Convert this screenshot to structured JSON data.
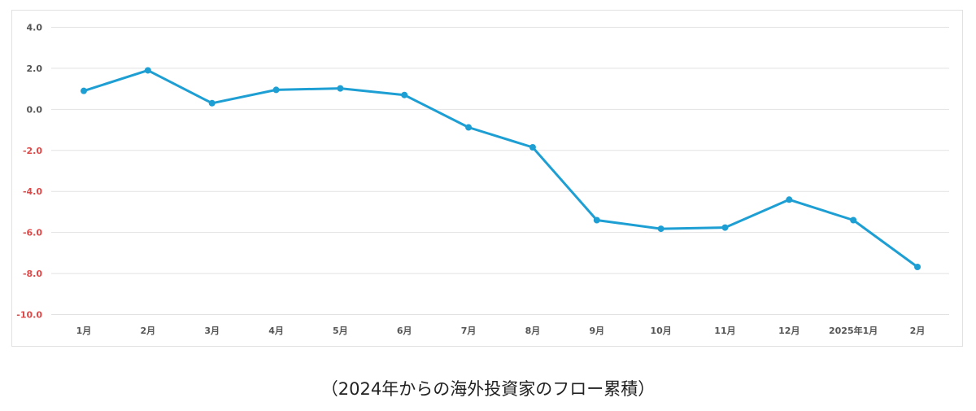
{
  "caption": "（2024年からの海外投資家のフロー累積）",
  "colors": {
    "line": "#1e9fd4",
    "negative_tick": "#e04848",
    "positive_tick": "#555555",
    "x_tick": "#555555",
    "grid": "#e2e2e2"
  },
  "chart_data": {
    "type": "line",
    "categories": [
      "1月",
      "2月",
      "3月",
      "4月",
      "5月",
      "6月",
      "7月",
      "8月",
      "9月",
      "10月",
      "11月",
      "12月",
      "2025年1月",
      "2月"
    ],
    "series": [
      {
        "values": [
          0.9,
          1.9,
          0.3,
          0.95,
          1.02,
          0.7,
          -0.88,
          -1.85,
          -5.4,
          -5.82,
          -5.76,
          -4.4,
          -5.4,
          -7.68
        ]
      }
    ],
    "yticks": [
      "4.0",
      "2.0",
      "0.0",
      "-2.0",
      "-4.0",
      "-6.0",
      "-8.0",
      "-10.0"
    ],
    "ylim": [
      -10,
      4
    ],
    "grid": true,
    "legend": false,
    "title": "",
    "xlabel": "",
    "ylabel": ""
  }
}
